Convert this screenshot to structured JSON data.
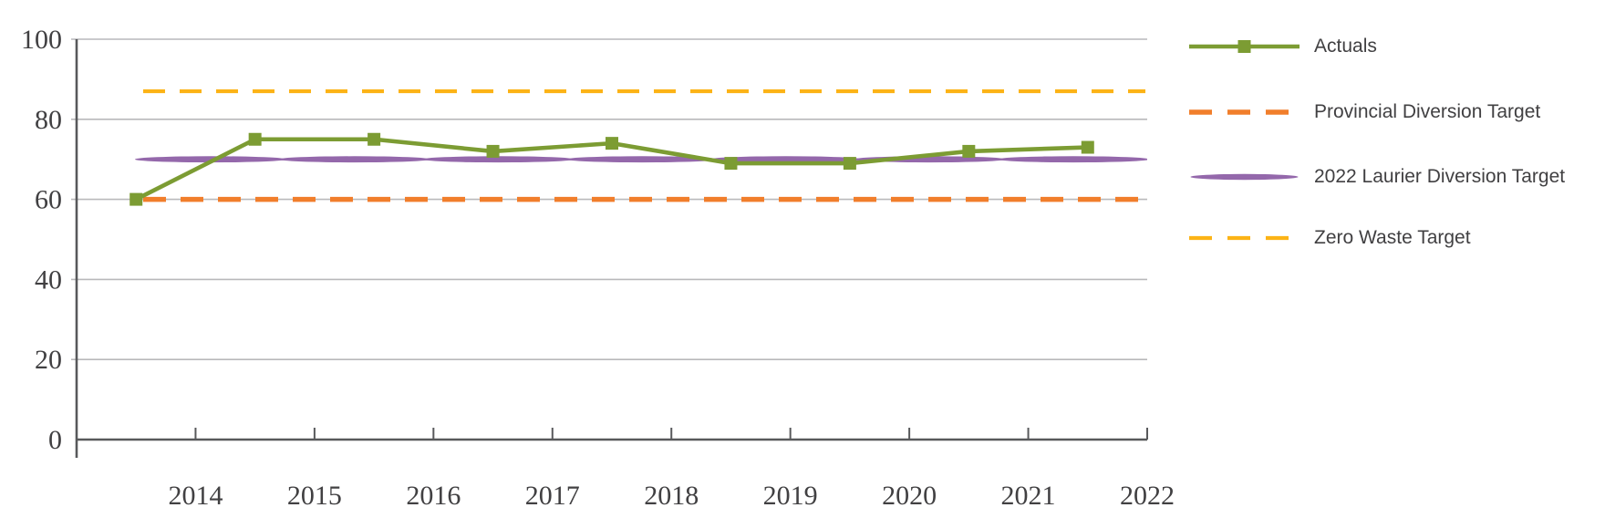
{
  "chart_data": {
    "type": "line",
    "title": "",
    "x": [
      2014,
      2015,
      2016,
      2017,
      2018,
      2019,
      2020,
      2021,
      2022
    ],
    "series": [
      {
        "name": "Actuals",
        "style": "solid-square-marker",
        "color": "#7C9C33",
        "values": [
          60,
          75,
          75,
          72,
          74,
          69,
          69,
          72,
          73
        ]
      },
      {
        "name": "Provincial Diversion Target",
        "style": "dashed",
        "color": "#F17E2B",
        "constant_value": 60
      },
      {
        "name": "2022 Laurier Diversion Target",
        "style": "tapered-lens-line",
        "color": "#9468AB",
        "constant_value": 70
      },
      {
        "name": "Zero Waste Target",
        "style": "dashed",
        "color": "#FCB316",
        "constant_value": 87
      }
    ],
    "xlabel": "",
    "ylabel": "",
    "ylim": [
      0,
      100
    ],
    "yticks": [
      0,
      20,
      40,
      60,
      80,
      100
    ],
    "grid": "horizontal",
    "legend_position": "right-outside"
  },
  "colors": {
    "background": "#ffffff",
    "axis_line": "#58595B",
    "gridline": "#B9B9BB",
    "tick_text": "#414042",
    "legend_text": "#414042",
    "actuals_green": "#7C9C33",
    "provincial_orange": "#F17E2B",
    "laurier_purple": "#9468AB",
    "zerowaste_amber": "#FCB316"
  },
  "legend": {
    "items": [
      {
        "label": "Actuals"
      },
      {
        "label": "Provincial Diversion Target"
      },
      {
        "label": "2022 Laurier Diversion Target"
      },
      {
        "label": "Zero Waste Target"
      }
    ]
  }
}
